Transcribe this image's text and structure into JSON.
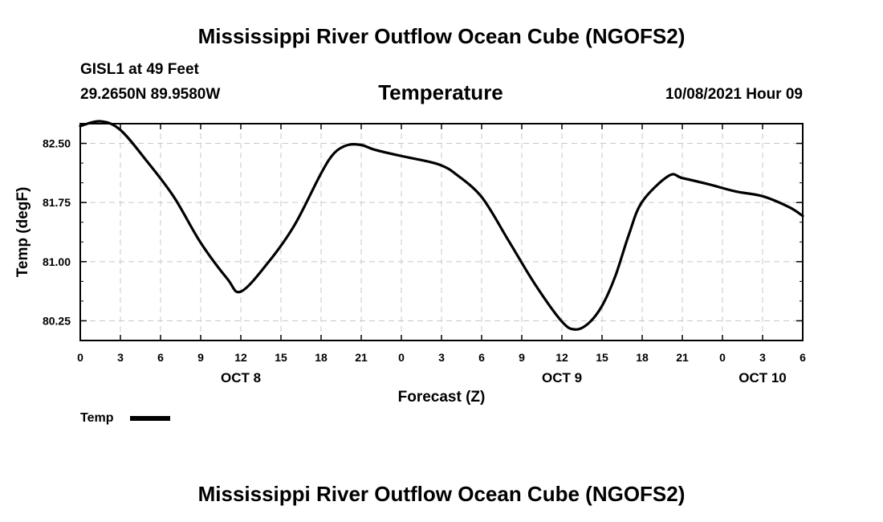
{
  "header": {
    "title": "Mississippi River Outflow Ocean Cube (NGOFS2)",
    "station": "GISL1 at 49 Feet",
    "coords": "29.2650N  89.9580W",
    "datetime": "10/08/2021 Hour 09"
  },
  "footer": {
    "title": "Mississippi River Outflow Ocean Cube (NGOFS2)"
  },
  "chart_data": {
    "type": "line",
    "title": "Temperature",
    "xlabel": "Forecast (Z)",
    "ylabel": "Temp (degF)",
    "xlim": [
      0,
      54
    ],
    "ylim": [
      80.0,
      82.75
    ],
    "grid": true,
    "x_ticks": [
      0,
      3,
      6,
      9,
      12,
      15,
      18,
      21,
      24,
      27,
      30,
      33,
      36,
      39,
      42,
      45,
      48,
      51,
      54
    ],
    "x_tick_labels": [
      "0",
      "3",
      "6",
      "9",
      "12",
      "15",
      "18",
      "21",
      "0",
      "3",
      "6",
      "9",
      "12",
      "15",
      "18",
      "21",
      "0",
      "3",
      "6"
    ],
    "y_ticks": [
      80.25,
      81.0,
      81.75,
      82.5
    ],
    "y_tick_labels": [
      "80.25",
      "81.00",
      "81.75",
      "82.50"
    ],
    "day_labels": [
      {
        "x": 12,
        "label": "OCT 8"
      },
      {
        "x": 36,
        "label": "OCT 9"
      },
      {
        "x": 51,
        "label": "OCT 10"
      }
    ],
    "legend": {
      "position": "bottom-left",
      "entries": [
        "Temp"
      ]
    },
    "series": [
      {
        "name": "Temp",
        "color": "#000000",
        "x": [
          0,
          1.5,
          3,
          5,
          7,
          9,
          11,
          12,
          14,
          16,
          18,
          19,
          20,
          21,
          22,
          24,
          26,
          27,
          28,
          30,
          32,
          34,
          36,
          37,
          38,
          39,
          40,
          41,
          42,
          44,
          45,
          47,
          49,
          51,
          53,
          54
        ],
        "values": [
          82.72,
          82.78,
          82.67,
          82.27,
          81.82,
          81.24,
          80.78,
          80.62,
          80.98,
          81.46,
          82.12,
          82.38,
          82.48,
          82.48,
          82.42,
          82.34,
          82.27,
          82.22,
          82.12,
          81.82,
          81.27,
          80.71,
          80.24,
          80.14,
          80.22,
          80.44,
          80.82,
          81.34,
          81.76,
          82.09,
          82.06,
          81.98,
          81.89,
          81.83,
          81.69,
          81.58
        ]
      }
    ]
  }
}
